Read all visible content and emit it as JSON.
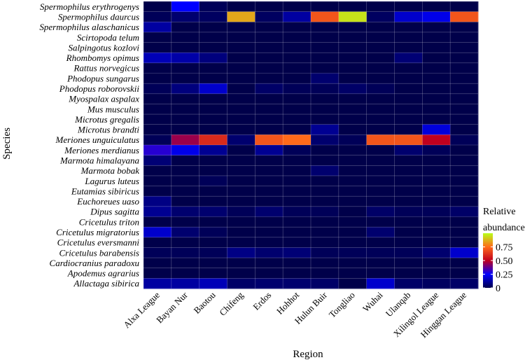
{
  "chart_data": {
    "type": "heatmap",
    "xlabel": "Region",
    "ylabel": "Species",
    "x_categories": [
      "Alxa League",
      "Bayan Nur",
      "Baotou",
      "Chifeng",
      "Erdos",
      "Hohhot",
      "Hulun Buir",
      "Tongliao",
      "Wuhai",
      "Ulanqab",
      "Xilingol League",
      "Hinggan League"
    ],
    "y_categories": [
      "Spermophilus erythrogenys",
      "Spermophilus daurcus",
      "Spermophilus alaschanicus",
      "Scirtopoda telum",
      "Salpingotus kozlovi",
      "Rhombomys opimus",
      "Rattus norvegicus",
      "Phodopus sungarus",
      "Phodopus roborovskii",
      "Myospalax aspalax",
      "Mus musculus",
      "Microtus gregalis",
      "Microtus brandti",
      "Meriones unguiculatus",
      "Meriones merdianus",
      "Marmota himalayana",
      "Marmota bobak",
      "Lagurus luteus",
      "Eutamias sibiricus",
      "Euchoreues uaso",
      "Dipus sagitta",
      "Cricetulus triton",
      "Cricetulus migratorius",
      "Cricetulus eversmanni",
      "Cricetulus barabensis",
      "Cardiocranius paradoxu",
      "Apodemus agrarius",
      "Allactaga sibirica"
    ],
    "values": [
      [
        0.0,
        0.25,
        0.02,
        0.0,
        0.0,
        0.0,
        0.0,
        0.0,
        0.0,
        0.0,
        0.0,
        0.0
      ],
      [
        0.02,
        0.05,
        0.03,
        0.85,
        0.03,
        0.12,
        0.7,
        0.95,
        0.03,
        0.18,
        0.22,
        0.7
      ],
      [
        0.12,
        0.0,
        0.0,
        0.0,
        0.0,
        0.0,
        0.0,
        0.0,
        0.0,
        0.0,
        0.0,
        0.0
      ],
      [
        0.0,
        0.0,
        0.0,
        0.0,
        0.0,
        0.0,
        0.0,
        0.0,
        0.0,
        0.0,
        0.0,
        0.0
      ],
      [
        0.0,
        0.0,
        0.0,
        0.0,
        0.0,
        0.0,
        0.0,
        0.0,
        0.0,
        0.0,
        0.0,
        0.0
      ],
      [
        0.15,
        0.13,
        0.07,
        0.0,
        0.0,
        0.0,
        0.0,
        0.0,
        0.0,
        0.06,
        0.0,
        0.0
      ],
      [
        0.0,
        0.0,
        0.0,
        0.0,
        0.0,
        0.0,
        0.0,
        0.0,
        0.0,
        0.0,
        0.0,
        0.0
      ],
      [
        0.0,
        0.0,
        0.0,
        0.0,
        0.0,
        0.0,
        0.05,
        0.0,
        0.0,
        0.0,
        0.0,
        0.0
      ],
      [
        0.02,
        0.07,
        0.18,
        0.0,
        0.04,
        0.02,
        0.02,
        0.04,
        0.02,
        0.0,
        0.0,
        0.0
      ],
      [
        0.0,
        0.0,
        0.0,
        0.0,
        0.0,
        0.0,
        0.0,
        0.0,
        0.0,
        0.0,
        0.0,
        0.0
      ],
      [
        0.0,
        0.0,
        0.0,
        0.0,
        0.0,
        0.0,
        0.0,
        0.0,
        0.0,
        0.0,
        0.0,
        0.0
      ],
      [
        0.0,
        0.0,
        0.0,
        0.0,
        0.0,
        0.0,
        0.0,
        0.0,
        0.0,
        0.0,
        0.0,
        0.0
      ],
      [
        0.0,
        0.0,
        0.0,
        0.0,
        0.0,
        0.0,
        0.1,
        0.0,
        0.0,
        0.0,
        0.2,
        0.0
      ],
      [
        0.02,
        0.45,
        0.6,
        0.05,
        0.7,
        0.75,
        0.05,
        0.02,
        0.7,
        0.7,
        0.5,
        0.02
      ],
      [
        0.3,
        0.22,
        0.1,
        0.0,
        0.1,
        0.02,
        0.0,
        0.0,
        0.0,
        0.05,
        0.02,
        0.0
      ],
      [
        0.06,
        0.0,
        0.0,
        0.0,
        0.0,
        0.0,
        0.0,
        0.0,
        0.0,
        0.0,
        0.0,
        0.0
      ],
      [
        0.0,
        0.0,
        0.0,
        0.0,
        0.0,
        0.0,
        0.05,
        0.0,
        0.0,
        0.0,
        0.0,
        0.0
      ],
      [
        0.0,
        0.0,
        0.02,
        0.0,
        0.0,
        0.0,
        0.0,
        0.0,
        0.0,
        0.0,
        0.0,
        0.0
      ],
      [
        0.0,
        0.0,
        0.0,
        0.0,
        0.0,
        0.0,
        0.0,
        0.0,
        0.0,
        0.0,
        0.0,
        0.0
      ],
      [
        0.08,
        0.0,
        0.0,
        0.0,
        0.0,
        0.0,
        0.0,
        0.0,
        0.0,
        0.0,
        0.0,
        0.0
      ],
      [
        0.1,
        0.05,
        0.05,
        0.02,
        0.05,
        0.02,
        0.02,
        0.0,
        0.04,
        0.02,
        0.02,
        0.04
      ],
      [
        0.0,
        0.0,
        0.0,
        0.0,
        0.0,
        0.0,
        0.0,
        0.0,
        0.0,
        0.0,
        0.0,
        0.0
      ],
      [
        0.18,
        0.05,
        0.02,
        0.0,
        0.0,
        0.0,
        0.0,
        0.0,
        0.05,
        0.0,
        0.0,
        0.0
      ],
      [
        0.0,
        0.0,
        0.0,
        0.0,
        0.0,
        0.0,
        0.0,
        0.0,
        0.0,
        0.0,
        0.0,
        0.0
      ],
      [
        0.02,
        0.02,
        0.02,
        0.08,
        0.05,
        0.06,
        0.02,
        0.02,
        0.02,
        0.02,
        0.05,
        0.18
      ],
      [
        0.0,
        0.0,
        0.0,
        0.0,
        0.0,
        0.0,
        0.0,
        0.0,
        0.0,
        0.0,
        0.0,
        0.0
      ],
      [
        0.0,
        0.0,
        0.0,
        0.0,
        0.0,
        0.0,
        0.0,
        0.0,
        0.0,
        0.0,
        0.0,
        0.0
      ],
      [
        0.12,
        0.12,
        0.15,
        0.04,
        0.05,
        0.05,
        0.04,
        0.0,
        0.18,
        0.04,
        0.03,
        0.04
      ]
    ],
    "color_scale": {
      "title_line1": "Relative",
      "title_line2": "abundance",
      "range": [
        0,
        1
      ],
      "ticks": [
        0,
        0.25,
        0.5,
        0.75
      ],
      "tick_labels": [
        "0",
        "0.25",
        "0.50",
        "0.75"
      ],
      "stops": [
        "#00004a",
        "#0000ff",
        "#c0001e",
        "#ff6a1a",
        "#b8ff1a"
      ]
    }
  }
}
